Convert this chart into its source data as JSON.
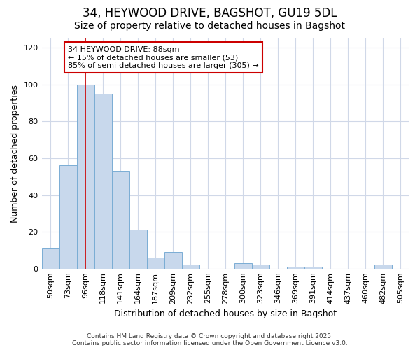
{
  "title_line1": "34, HEYWOOD DRIVE, BAGSHOT, GU19 5DL",
  "title_line2": "Size of property relative to detached houses in Bagshot",
  "xlabel": "Distribution of detached houses by size in Bagshot",
  "ylabel": "Number of detached properties",
  "categories": [
    "50sqm",
    "73sqm",
    "96sqm",
    "118sqm",
    "141sqm",
    "164sqm",
    "187sqm",
    "209sqm",
    "232sqm",
    "255sqm",
    "278sqm",
    "300sqm",
    "323sqm",
    "346sqm",
    "369sqm",
    "391sqm",
    "414sqm",
    "437sqm",
    "460sqm",
    "482sqm",
    "505sqm"
  ],
  "values": [
    11,
    56,
    100,
    95,
    53,
    21,
    6,
    9,
    2,
    0,
    0,
    3,
    2,
    0,
    1,
    1,
    0,
    0,
    0,
    2,
    0
  ],
  "bar_color": "#c8d8ec",
  "bar_edge_color": "#7aadd4",
  "red_line_x": 1.98,
  "annotation_text": "34 HEYWOOD DRIVE: 88sqm\n← 15% of detached houses are smaller (53)\n85% of semi-detached houses are larger (305) →",
  "annotation_box_facecolor": "white",
  "annotation_box_edgecolor": "#cc0000",
  "ylim": [
    0,
    125
  ],
  "yticks": [
    0,
    20,
    40,
    60,
    80,
    100,
    120
  ],
  "footer_line1": "Contains HM Land Registry data © Crown copyright and database right 2025.",
  "footer_line2": "Contains public sector information licensed under the Open Government Licence v3.0.",
  "background_color": "#ffffff",
  "grid_color": "#d0d8e8",
  "title_fontsize": 12,
  "subtitle_fontsize": 10,
  "tick_fontsize": 8,
  "ylabel_fontsize": 9,
  "xlabel_fontsize": 9
}
